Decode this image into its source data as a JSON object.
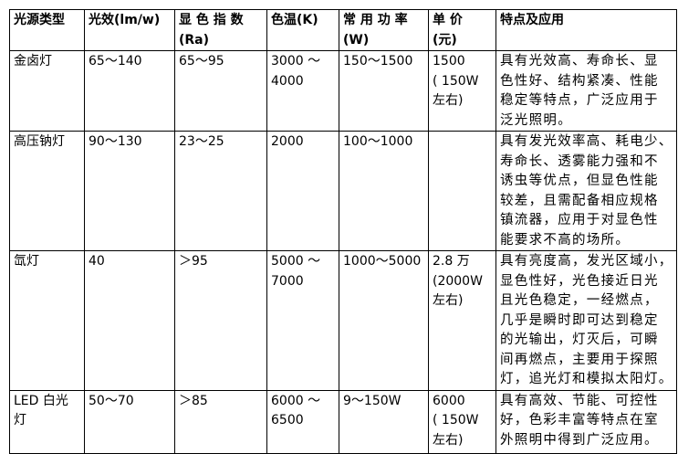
{
  "headers": [
    "光源类型",
    "光效(lm/w)",
    "显 色 指 数\n(Ra)",
    "色温(K)",
    "常 用 功 率\n(W)",
    "单    价\n(元)",
    "特点及应用"
  ],
  "rows": [
    {
      "type": "金卤灯",
      "efficacy": "65～140",
      "cri": "65～95",
      "cct": "3000  ～\n4000",
      "power": "150～1500",
      "price": "1500\n( 150W\n左右)",
      "desc": "具有光效高、寿命长、显\n色性好、结构紧凑、性能\n稳定等特点，广泛应用于\n泛光照明。"
    },
    {
      "type": "高压钠灯",
      "efficacy": "90～130",
      "cri": "23～25",
      "cct": "2000",
      "power": "100～1000",
      "price": "",
      "desc": "具有发光效率高、耗电少、\n寿命长、透雾能力强和不\n诱虫等优点，但显色性能\n较差，且需配备相应规格\n镇流器，应用于对显色性\n能要求不高的场所。"
    },
    {
      "type": "氙灯",
      "efficacy": "40",
      "cri": "＞95",
      "cct": "5000  ～\n7000",
      "power": "1000～5000",
      "price": "2.8  万\n(2000W\n左右)",
      "desc": "具有亮度高，发光区域小，\n显色性好，光色接近日光\n且光色稳定，一经燃点，\n几乎是瞬时即可达到稳定\n的光输出，灯灭后，可瞬\n间再燃点，主要用于探照\n灯，追光灯和模拟太阳灯。"
    },
    {
      "type": "LED 白光\n灯",
      "efficacy": "50～70",
      "cri": "＞85",
      "cct": "6000  ～\n6500",
      "power": "9～150W",
      "price": "6000\n( 150W\n左右)",
      "desc": "具有高效、节能、可控性\n好，色彩丰富等特点在室\n外照明中得到广泛应用。"
    }
  ]
}
